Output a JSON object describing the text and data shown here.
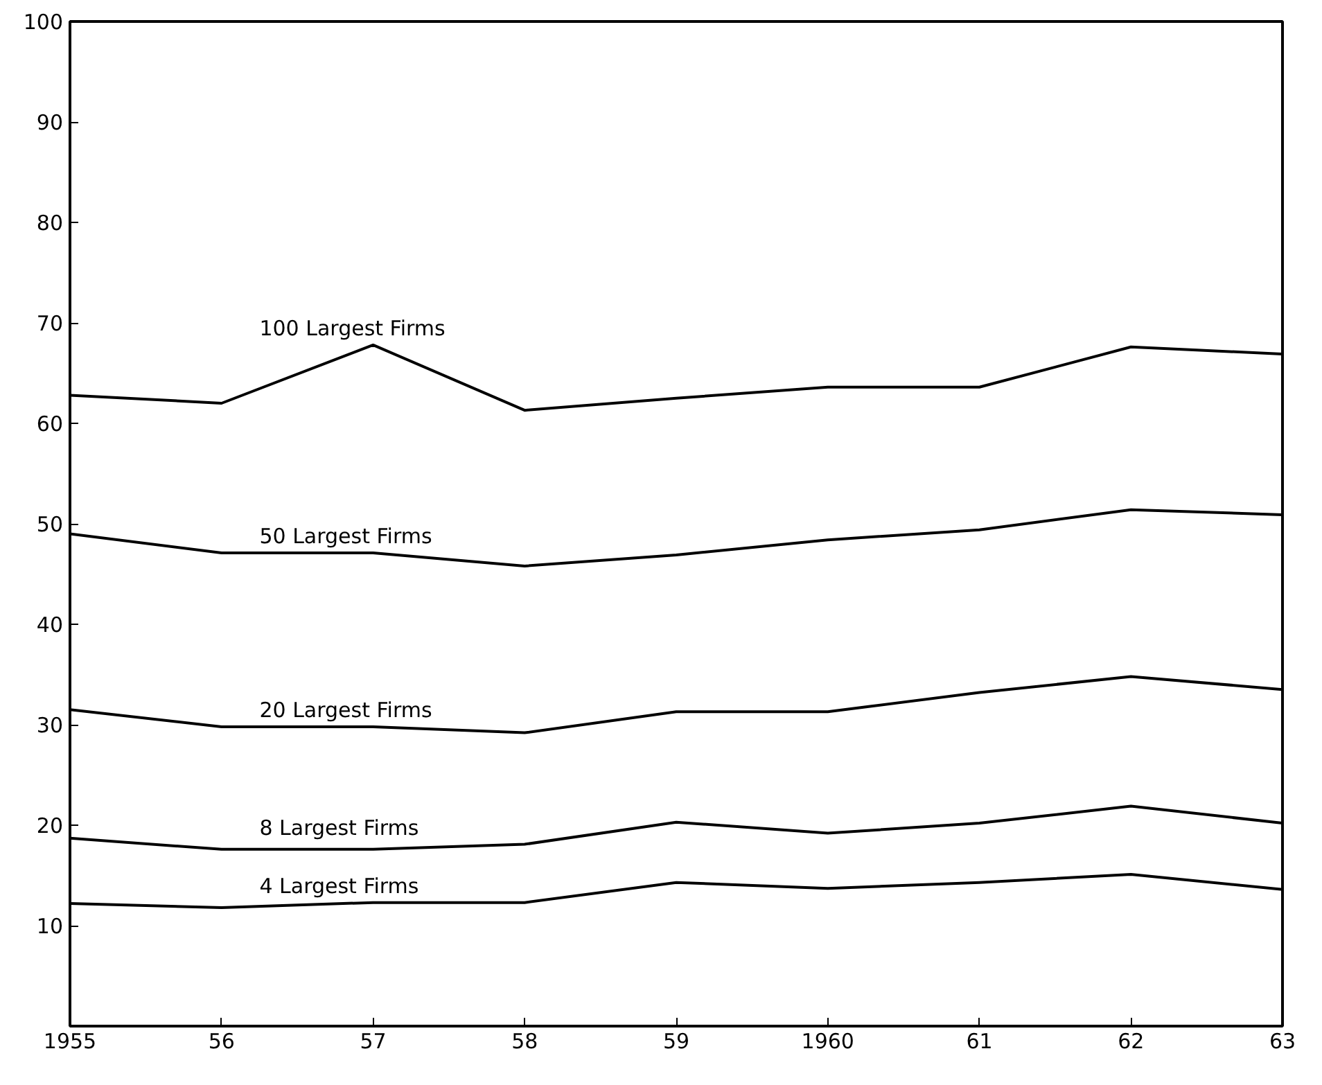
{
  "chart_data": {
    "type": "line",
    "x": [
      1955,
      1956,
      1957,
      1958,
      1959,
      1960,
      1961,
      1962,
      1963
    ],
    "xlim": [
      1955,
      1963
    ],
    "xticks": [
      {
        "value": 1955,
        "label": "1955"
      },
      {
        "value": 1956,
        "label": "56"
      },
      {
        "value": 1957,
        "label": "57"
      },
      {
        "value": 1958,
        "label": "58"
      },
      {
        "value": 1959,
        "label": "59"
      },
      {
        "value": 1960,
        "label": "1960"
      },
      {
        "value": 1961,
        "label": "61"
      },
      {
        "value": 1962,
        "label": "62"
      },
      {
        "value": 1963,
        "label": "63"
      }
    ],
    "ylim": [
      0,
      100
    ],
    "yticks": [
      10,
      20,
      30,
      40,
      50,
      60,
      70,
      80,
      90,
      100
    ],
    "grid": false,
    "legend": false,
    "marker": "none",
    "line_style": "solid",
    "series": [
      {
        "name": "100 Largest Firms",
        "color": "#000000",
        "values": [
          62.8,
          62.0,
          67.8,
          61.3,
          62.5,
          63.6,
          63.6,
          67.6,
          66.9
        ]
      },
      {
        "name": "50 Largest Firms",
        "color": "#000000",
        "values": [
          49.0,
          47.1,
          47.1,
          45.8,
          46.9,
          48.4,
          49.4,
          51.4,
          50.9
        ]
      },
      {
        "name": "20 Largest Firms",
        "color": "#000000",
        "values": [
          31.5,
          29.8,
          29.8,
          29.2,
          31.3,
          31.3,
          33.2,
          34.8,
          33.5
        ]
      },
      {
        "name": "8 Largest Firms",
        "color": "#000000",
        "values": [
          18.7,
          17.6,
          17.6,
          18.1,
          20.3,
          19.2,
          20.2,
          21.9,
          20.2
        ]
      },
      {
        "name": "4 Largest Firms",
        "color": "#000000",
        "values": [
          12.2,
          11.8,
          12.3,
          12.3,
          14.3,
          13.7,
          14.3,
          15.1,
          13.6
        ]
      }
    ]
  }
}
